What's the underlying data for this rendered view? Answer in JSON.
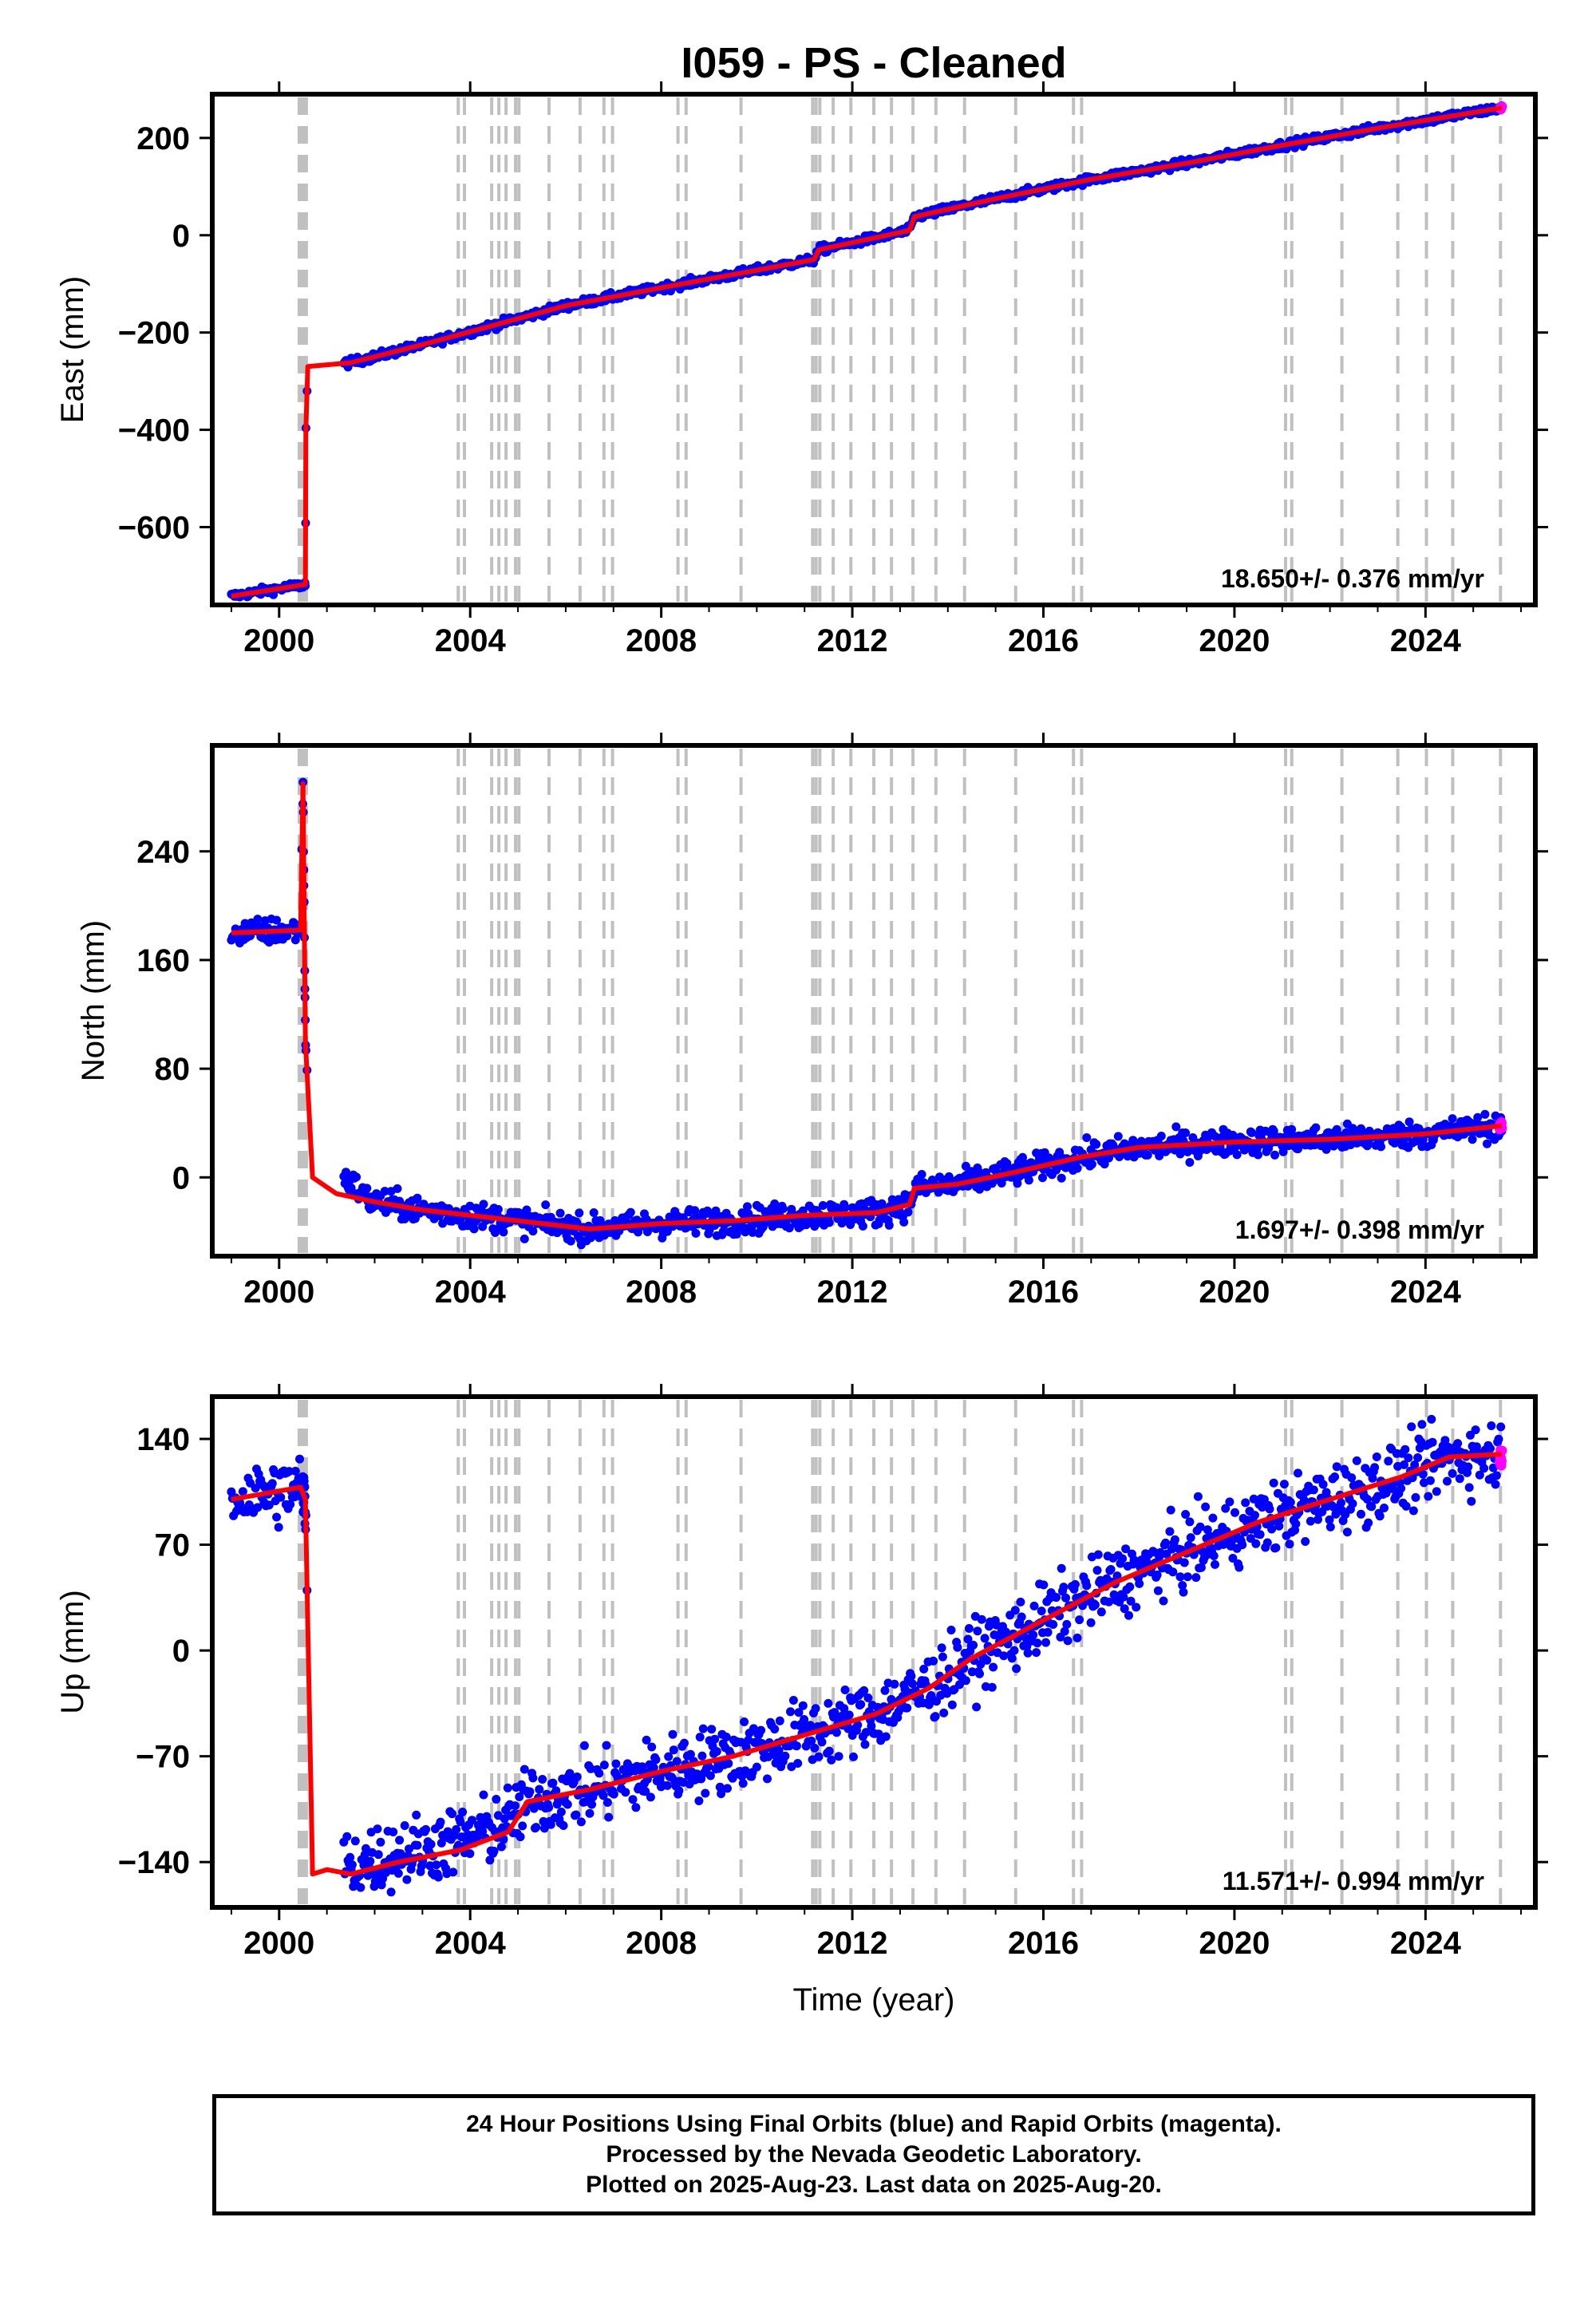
{
  "chart_data": {
    "type": "scatter",
    "title": "I059  - PS - Cleaned",
    "xlabel": "Time (year)",
    "x_ticks": [
      "2000",
      "2004",
      "2008",
      "2012",
      "2016",
      "2020",
      "2024"
    ],
    "xlim": [
      1998.6,
      2026.3
    ],
    "grid": false,
    "vertical_dashed_line_years": [
      2000.42,
      2000.47,
      2000.52,
      2000.57,
      2003.75,
      2003.88,
      2004.45,
      2004.6,
      2004.75,
      2004.95,
      2005.02,
      2005.65,
      2006.3,
      2006.8,
      2006.98,
      2008.35,
      2008.52,
      2009.67,
      2011.17,
      2011.24,
      2011.32,
      2011.6,
      2011.97,
      2012.45,
      2012.82,
      2013.27,
      2013.75,
      2014.35,
      2015.42,
      2016.63,
      2016.8,
      2021.07,
      2021.2,
      2022.25,
      2023.42,
      2024.02,
      2024.57,
      2025.57
    ],
    "colors": {
      "final_orbits": "#0000ff",
      "rapid_orbits": "#ff00ff",
      "model": "#ff0000",
      "dashed_lines": "#c0c0c0"
    },
    "panels": [
      {
        "ylabel": "East (mm)",
        "ylim": [
          -760,
          290
        ],
        "y_ticks": [
          200,
          0,
          -200,
          -400,
          -600
        ],
        "rate_text": "18.650+/- 0.376 mm/yr",
        "series": [
          {
            "style": "model",
            "x": [
              1999.0,
              2000.55,
              2000.56,
              2000.6,
              2001.5,
              2003.0,
              2004.5,
              2006.0,
              2008.0,
              2010.0,
              2011.2,
              2011.3,
              2013.2,
              2013.3,
              2015.0,
              2017.0,
              2019.0,
              2021.0,
              2023.0,
              2025.6
            ],
            "y": [
              -742,
              -718,
              -400,
              -270,
              -262,
              -225,
              -185,
              -145,
              -108,
              -72,
              -50,
              -30,
              10,
              38,
              75,
              115,
              148,
              185,
              220,
              262
            ]
          }
        ]
      },
      {
        "ylabel": "North (mm)",
        "ylim": [
          -58,
          318
        ],
        "y_ticks": [
          240,
          160,
          80,
          0
        ],
        "rate_text": "1.697+/- 0.398 mm/yr",
        "series": [
          {
            "style": "model",
            "x": [
              1999.0,
              2000.45,
              2000.5,
              2000.55,
              2000.7,
              2001.2,
              2002.0,
              2003.0,
              2004.0,
              2005.0,
              2006.5,
              2008.0,
              2009.5,
              2011.0,
              2012.5,
              2013.2,
              2013.3,
              2014.2,
              2015.3,
              2016.8,
              2018.0,
              2020.0,
              2022.0,
              2024.0,
              2025.6
            ],
            "y": [
              180,
              182,
              290,
              100,
              0,
              -12,
              -18,
              -24,
              -28,
              -32,
              -38,
              -34,
              -32,
              -28,
              -26,
              -20,
              -8,
              -5,
              3,
              15,
              22,
              26,
              28,
              32,
              38
            ]
          }
        ]
      },
      {
        "ylabel": "Up (mm)",
        "ylim": [
          -170,
          168
        ],
        "y_ticks": [
          140,
          70,
          0,
          -70,
          -140
        ],
        "rate_text": "11.571+/- 0.994 mm/yr",
        "series": [
          {
            "style": "model",
            "x": [
              1999.0,
              2000.45,
              2000.55,
              2000.7,
              2001.0,
              2001.5,
              2002.5,
              2003.8,
              2004.8,
              2005.2,
              2006.5,
              2008.0,
              2009.5,
              2011.0,
              2012.5,
              2013.6,
              2014.5,
              2016.0,
              2017.5,
              2019.0,
              2020.5,
              2022.0,
              2023.5,
              2024.5,
              2025.6
            ],
            "y": [
              100,
              108,
              100,
              -148,
              -145,
              -148,
              -140,
              -132,
              -120,
              -100,
              -92,
              -80,
              -70,
              -56,
              -42,
              -25,
              -5,
              20,
              45,
              65,
              85,
              100,
              115,
              128,
              130
            ]
          }
        ]
      }
    ]
  },
  "footer": {
    "line1": "24 Hour Positions Using Final Orbits (blue) and Rapid Orbits (magenta).",
    "line2": "Processed by the Nevada Geodetic Laboratory.",
    "line3": "Plotted on 2025-Aug-23. Last data on 2025-Aug-20."
  }
}
